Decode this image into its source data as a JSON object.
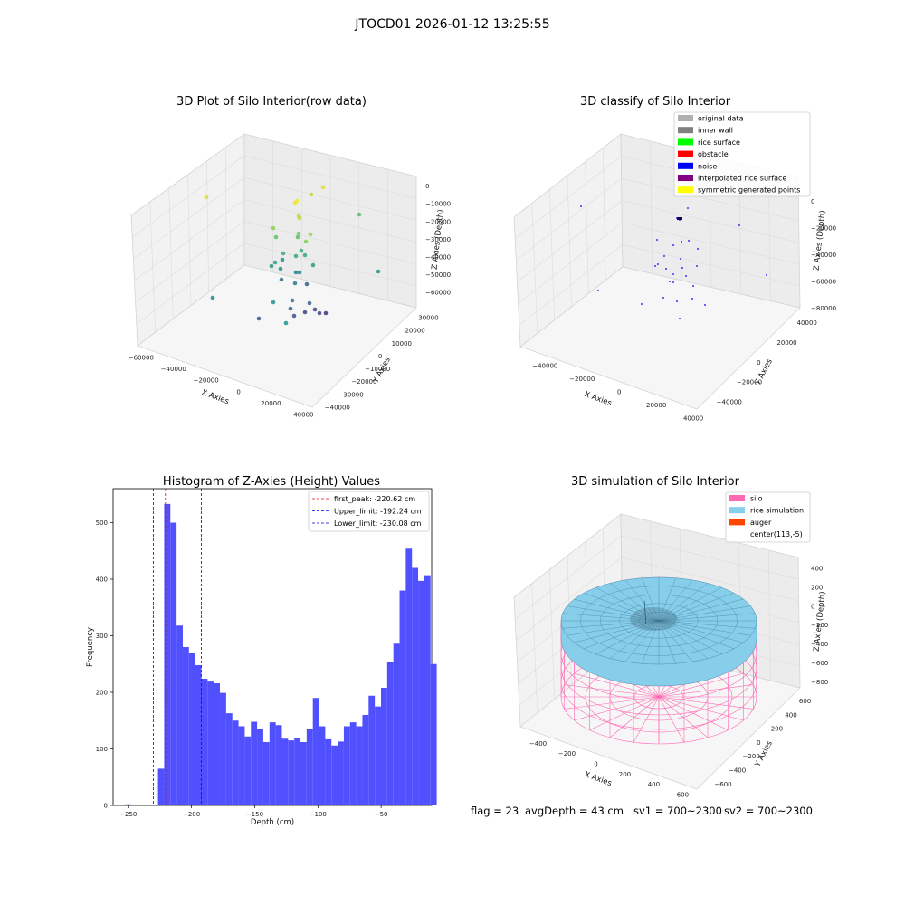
{
  "suptitle": "JTOCD01 2026-01-12 13:25:55",
  "footer": {
    "flag": "flag = 23",
    "avg": "avgDepth = 43 cm",
    "sv1": "sv1 = 700~2300",
    "sv2": "sv2 = 700~2300"
  },
  "colors": {
    "hist": "#5050ff",
    "first_peak": "#ff0000",
    "limits": "#0000ff",
    "silo": "#ff69b4",
    "rice": "#87ceeb",
    "auger": "#ff4500",
    "original": "#b0b0b0",
    "inner_wall": "#808080",
    "rice_surface": "#00ff00",
    "obstacle": "#ff0000",
    "noise": "#0000ff",
    "interp": "#800080",
    "symmetric": "#ffff00"
  },
  "chart_data": [
    {
      "type": "scatter",
      "panel": "3d-raw",
      "title": "3D Plot of Silo Interior(row data)",
      "xlabel": "X Axies",
      "ylabel": "Y Axies",
      "zlabel": "Z Axies (Depth)",
      "x_ticks": [
        "−60000",
        "−40000",
        "−20000",
        "0",
        "20000",
        "40000"
      ],
      "y_ticks": [
        "−40000",
        "−30000",
        "−20000",
        "−10000",
        "0",
        "10000",
        "20000",
        "30000"
      ],
      "z_ticks": [
        "−60000",
        "−50000",
        "−40000",
        "−30000",
        "−20000",
        "−10000",
        "0"
      ],
      "colormap": "viridis"
    },
    {
      "type": "scatter",
      "panel": "3d-classify",
      "title": "3D classify of Silo Interior",
      "xlabel": "X Axies",
      "ylabel": "Y Axies",
      "zlabel": "Z Axies (Depth)",
      "x_ticks": [
        "−40000",
        "−20000",
        "0",
        "20000",
        "40000"
      ],
      "y_ticks": [
        "−40000",
        "−20000",
        "0",
        "20000",
        "40000"
      ],
      "z_ticks": [
        "−80000",
        "−60000",
        "−40000",
        "−20000",
        "0"
      ],
      "legend": [
        "original data",
        "inner wall",
        "rice surface",
        "obstacle",
        "noise",
        "interpolated rice surface",
        "symmetric generated points"
      ]
    },
    {
      "type": "bar",
      "panel": "histogram",
      "title": "Histogram of Z-Axies (Height) Values",
      "xlabel": "Depth (cm)",
      "ylabel": "Frequency",
      "xlim": [
        -262,
        -10
      ],
      "ylim": [
        0,
        560
      ],
      "x_ticks": [
        -250,
        -200,
        -150,
        -100,
        -50
      ],
      "x_tick_labels": [
        "−250",
        "−200",
        "−150",
        "−100",
        "−50"
      ],
      "y_ticks": [
        0,
        100,
        200,
        300,
        400,
        500
      ],
      "bin_start": -226.5,
      "bin_width": 4.9,
      "values": [
        65,
        533,
        500,
        318,
        280,
        270,
        248,
        224,
        219,
        216,
        199,
        163,
        150,
        140,
        122,
        148,
        135,
        112,
        147,
        142,
        118,
        115,
        120,
        112,
        135,
        190,
        140,
        117,
        106,
        113,
        140,
        147,
        140,
        160,
        194,
        175,
        208,
        254,
        286,
        380,
        454,
        420,
        397,
        407,
        250
      ],
      "outliers": [
        {
          "x": -250,
          "value": 2
        }
      ],
      "lines": [
        {
          "name": "first_peak: -220.62 cm",
          "x": -220.62,
          "color": "#ff0000"
        },
        {
          "name": "Upper_limit: -192.24 cm",
          "x": -192.24,
          "color": "#0000ff"
        },
        {
          "name": "Lower_limit: -230.08 cm",
          "x": -230.08,
          "color": "#0000ff"
        }
      ],
      "legend_placement": "top-right"
    },
    {
      "type": "scatter",
      "panel": "3d-simulation",
      "title": "3D simulation of Silo Interior",
      "xlabel": "X Axies",
      "ylabel": "Y Axies",
      "zlabel": "Z Axies (Depth)",
      "x_ticks": [
        "−400",
        "−200",
        "0",
        "200",
        "400",
        "600"
      ],
      "y_ticks": [
        "−600",
        "−400",
        "−200",
        "0",
        "200",
        "400",
        "600"
      ],
      "z_ticks": [
        "−800",
        "−600",
        "−400",
        "−200",
        "0",
        "200",
        "400"
      ],
      "legend": [
        "silo",
        "rice simulation",
        "auger",
        "center(113,-5)"
      ]
    }
  ]
}
